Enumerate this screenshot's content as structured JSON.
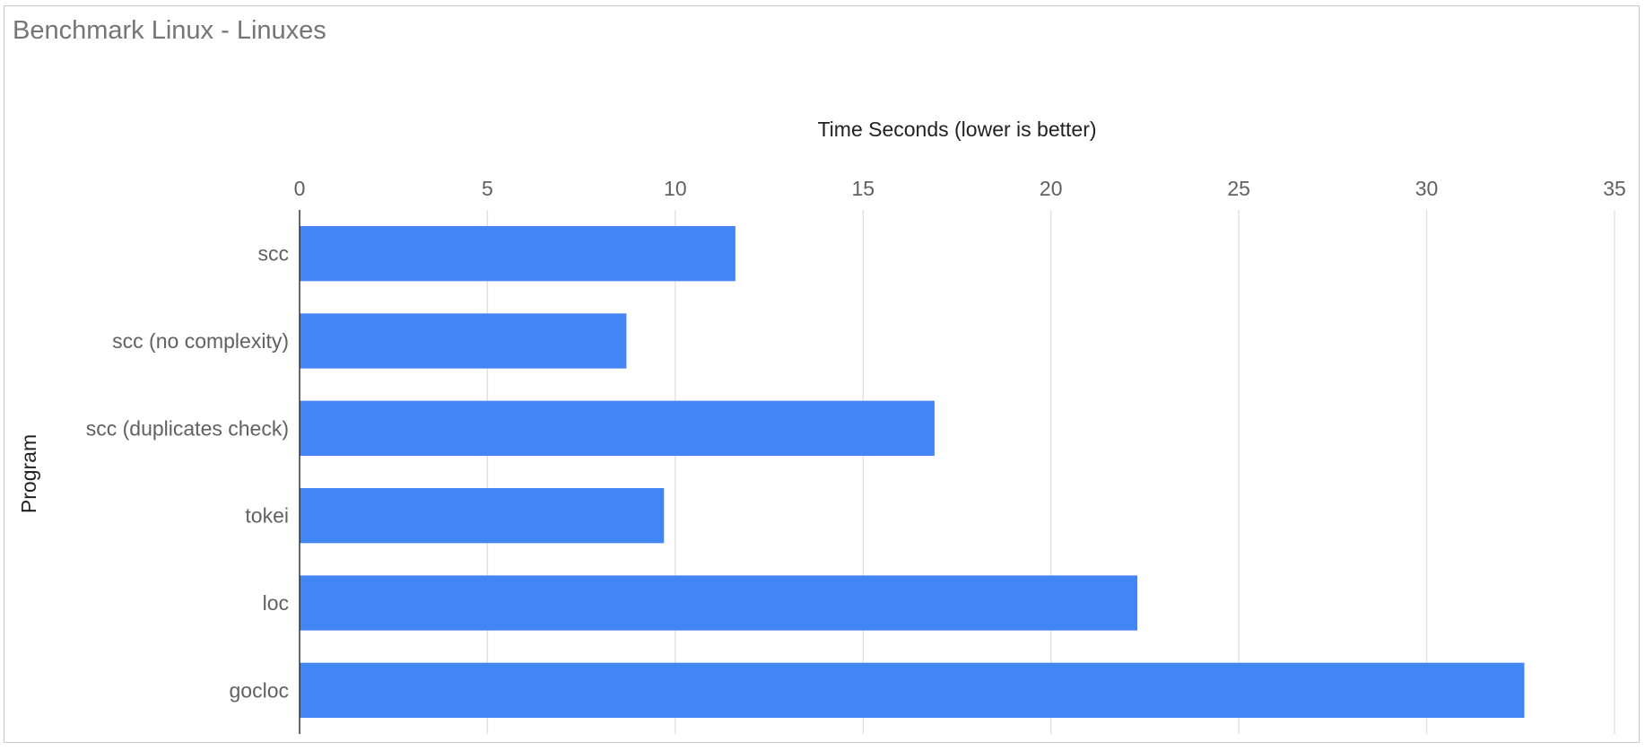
{
  "chart_data": {
    "type": "bar",
    "orientation": "horizontal",
    "title": "Benchmark Linux - Linuxes",
    "xlabel": "Time Seconds (lower is better)",
    "ylabel": "Program",
    "categories": [
      "scc",
      "scc (no complexity)",
      "scc (duplicates check)",
      "tokei",
      "loc",
      "gocloc"
    ],
    "values": [
      11.6,
      8.7,
      16.9,
      9.7,
      22.3,
      32.6
    ],
    "xlim": [
      0,
      35
    ],
    "xticks": [
      0,
      5,
      10,
      15,
      20,
      25,
      30,
      35
    ],
    "grid": true,
    "legend": "none",
    "bar_color": "#4285f4"
  }
}
